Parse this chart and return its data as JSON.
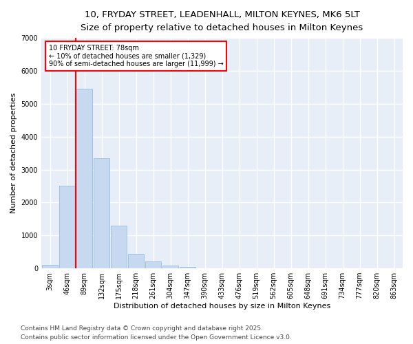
{
  "title_line1": "10, FRYDAY STREET, LEADENHALL, MILTON KEYNES, MK6 5LT",
  "title_line2": "Size of property relative to detached houses in Milton Keynes",
  "xlabel": "Distribution of detached houses by size in Milton Keynes",
  "ylabel": "Number of detached properties",
  "categories": [
    "3sqm",
    "46sqm",
    "89sqm",
    "132sqm",
    "175sqm",
    "218sqm",
    "261sqm",
    "304sqm",
    "347sqm",
    "390sqm",
    "433sqm",
    "476sqm",
    "519sqm",
    "562sqm",
    "605sqm",
    "648sqm",
    "691sqm",
    "734sqm",
    "777sqm",
    "820sqm",
    "863sqm"
  ],
  "values": [
    100,
    2500,
    5450,
    3350,
    1300,
    450,
    210,
    90,
    50,
    0,
    0,
    0,
    0,
    0,
    0,
    0,
    0,
    0,
    0,
    0,
    0
  ],
  "bar_color": "#c6d9f0",
  "bar_edge_color": "#8ab4d8",
  "vline_x": 1.5,
  "annotation_text": "10 FRYDAY STREET: 78sqm\n← 10% of detached houses are smaller (1,329)\n90% of semi-detached houses are larger (11,999) →",
  "annotation_box_color": "white",
  "annotation_box_edge_color": "red",
  "vline_color": "red",
  "ylim": [
    0,
    7000
  ],
  "yticks": [
    0,
    1000,
    2000,
    3000,
    4000,
    5000,
    6000,
    7000
  ],
  "background_color": "#e8eef8",
  "grid_color": "white",
  "footer_line1": "Contains HM Land Registry data © Crown copyright and database right 2025.",
  "footer_line2": "Contains public sector information licensed under the Open Government Licence v3.0.",
  "title_fontsize": 9.5,
  "subtitle_fontsize": 8.5,
  "axis_label_fontsize": 8,
  "tick_fontsize": 7,
  "annotation_fontsize": 7,
  "footer_fontsize": 6.5
}
